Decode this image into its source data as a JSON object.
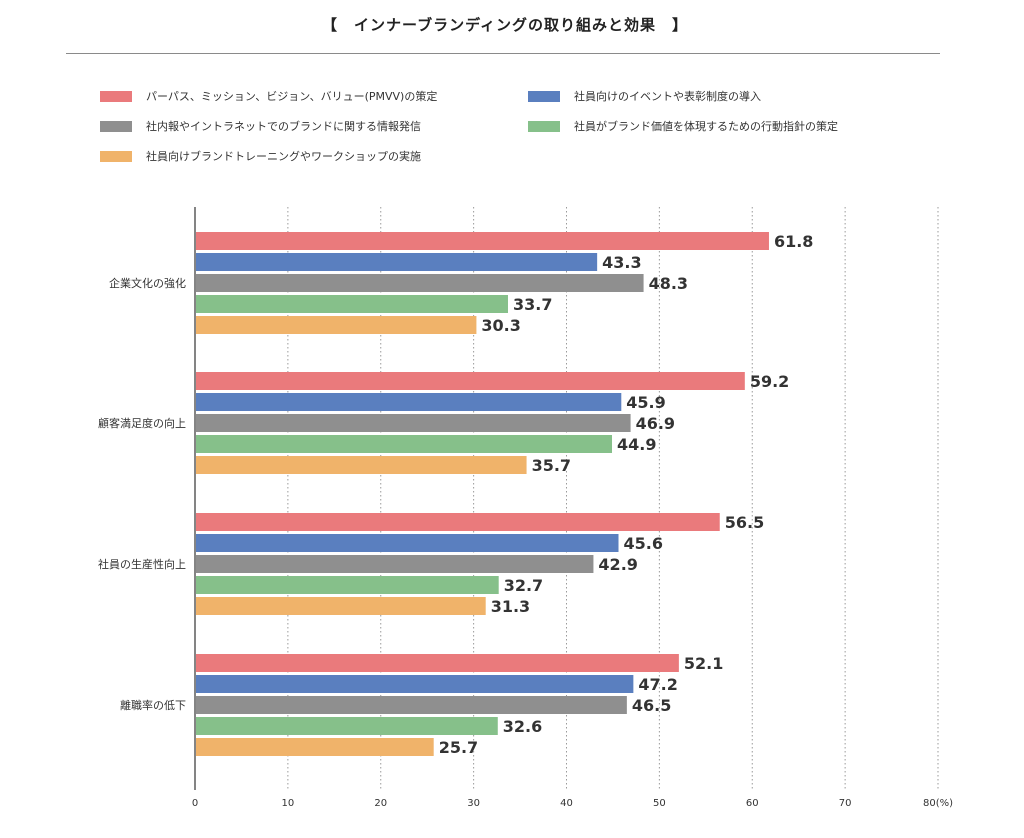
{
  "title": "【　インナーブランディングの取り組みと効果　】",
  "colors": {
    "pmvv": "#ea7a7c",
    "event": "#5a7fbf",
    "info": "#8f8f8f",
    "action": "#86c08a",
    "training": "#f0b36a"
  },
  "chart_data": {
    "type": "bar",
    "orientation": "horizontal",
    "title": "【　インナーブランディングの取り組みと効果　】",
    "xlabel": "",
    "ylabel": "",
    "xlim": [
      0,
      80
    ],
    "x_ticks": [
      0,
      10,
      20,
      30,
      40,
      50,
      60,
      70,
      80
    ],
    "x_tick_labels": [
      "0",
      "10",
      "20",
      "30",
      "40",
      "50",
      "60",
      "70",
      "80(%)"
    ],
    "grid": "vertical dotted",
    "legend_position": "top",
    "categories": [
      "企業文化の強化",
      "顧客満足度の向上",
      "社員の生産性向上",
      "離職率の低下"
    ],
    "series": [
      {
        "name": "パーパス、ミッション、ビジョン、バリュー(PMVV)の策定",
        "color": "#ea7a7c",
        "values": [
          61.8,
          59.2,
          56.5,
          52.1
        ]
      },
      {
        "name": "社員向けのイベントや表彰制度の導入",
        "color": "#5a7fbf",
        "values": [
          43.3,
          45.9,
          45.6,
          47.2
        ]
      },
      {
        "name": "社内報やイントラネットでのブランドに関する情報発信",
        "color": "#8f8f8f",
        "values": [
          48.3,
          46.9,
          42.9,
          46.5
        ]
      },
      {
        "name": "社員がブランド価値を体現するための行動指針の策定",
        "color": "#86c08a",
        "values": [
          33.7,
          44.9,
          32.7,
          32.6
        ]
      },
      {
        "name": "社員向けブランドトレーニングやワークショップの実施",
        "color": "#f0b36a",
        "values": [
          30.3,
          35.7,
          31.3,
          25.7
        ]
      }
    ]
  }
}
